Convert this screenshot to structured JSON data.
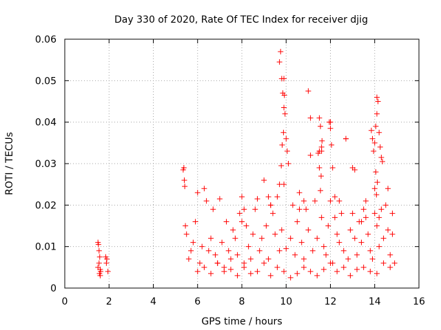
{
  "chart_data": {
    "type": "scatter",
    "title": "Day 330 of 2020, Rate Of TEC Index for receiver djig",
    "xlabel": "GPS time / hours",
    "ylabel": "ROTI / TECUs",
    "xlim": [
      0,
      16
    ],
    "ylim": [
      0,
      0.06
    ],
    "xticks": [
      "0",
      "2",
      "4",
      "6",
      "8",
      "10",
      "12",
      "14",
      "16"
    ],
    "yticks": [
      "0",
      "0.01",
      "0.02",
      "0.03",
      "0.04",
      "0.05",
      "0.06"
    ],
    "grid": true,
    "marker": "+",
    "color": "#ff0000",
    "series": [
      {
        "name": "ROTI",
        "x": [
          1.5,
          1.52,
          1.55,
          1.57,
          1.6,
          1.62,
          1.5,
          1.55,
          1.6,
          1.58,
          1.85,
          1.9,
          1.88,
          1.95,
          5.35,
          5.4,
          5.38,
          5.42,
          5.45,
          5.5,
          5.6,
          5.7,
          5.8,
          5.9,
          6.0,
          6.1,
          6.2,
          6.3,
          6.4,
          6.5,
          6.6,
          6.7,
          6.8,
          6.9,
          7.0,
          7.1,
          7.2,
          7.3,
          7.4,
          7.5,
          7.6,
          7.7,
          7.8,
          7.9,
          8.0,
          8.1,
          8.2,
          8.3,
          8.4,
          8.5,
          8.6,
          8.7,
          8.8,
          8.9,
          9.0,
          9.1,
          9.2,
          9.3,
          9.4,
          9.5,
          9.6,
          9.7,
          9.8,
          9.9,
          10.0,
          10.1,
          10.2,
          10.3,
          10.4,
          10.5,
          10.6,
          10.7,
          10.8,
          10.9,
          11.0,
          11.1,
          11.2,
          11.3,
          11.4,
          11.5,
          11.6,
          11.7,
          11.8,
          11.9,
          12.0,
          12.1,
          12.2,
          12.3,
          12.4,
          12.5,
          12.6,
          12.7,
          12.8,
          12.9,
          13.0,
          13.1,
          13.2,
          13.3,
          13.4,
          13.5,
          13.6,
          13.7,
          13.8,
          13.9,
          14.0,
          14.1,
          14.2,
          14.3,
          14.4,
          14.5,
          14.6,
          14.7,
          14.8,
          14.9,
          6.0,
          6.3,
          6.6,
          6.9,
          7.2,
          7.5,
          7.8,
          8.1,
          8.4,
          8.7,
          9.0,
          9.3,
          9.6,
          9.9,
          10.2,
          10.5,
          10.8,
          11.1,
          11.4,
          11.7,
          12.0,
          12.3,
          12.6,
          12.9,
          13.2,
          13.5,
          13.8,
          14.1,
          14.4,
          14.7,
          9.7,
          9.75,
          9.8,
          9.85,
          9.9,
          9.95,
          10.0,
          9.88,
          9.92,
          9.78,
          9.82,
          9.9,
          10.05,
          9.7,
          11.5,
          11.55,
          11.6,
          11.45,
          11.5,
          11.58,
          11.62,
          11.55,
          11.95,
          12.0,
          12.05,
          12.1,
          12.0,
          13.85,
          13.9,
          13.95,
          14.0,
          14.05,
          14.1,
          14.15,
          14.1,
          14.05,
          14.2,
          14.25,
          14.3,
          14.35,
          14.12,
          14.08,
          11.0,
          11.1,
          12.7,
          13.1,
          11.6,
          14.0,
          14.2,
          8.0,
          8.1,
          9.2,
          9.3,
          10.6,
          10.8,
          12.2,
          12.4,
          13.0,
          13.4,
          13.6,
          14.6,
          14.8
        ],
        "y": [
          0.011,
          0.0105,
          0.009,
          0.0035,
          0.003,
          0.004,
          0.005,
          0.006,
          0.0045,
          0.0075,
          0.0075,
          0.007,
          0.006,
          0.004,
          0.0285,
          0.026,
          0.029,
          0.0245,
          0.015,
          0.013,
          0.007,
          0.009,
          0.011,
          0.016,
          0.023,
          0.006,
          0.01,
          0.024,
          0.021,
          0.009,
          0.012,
          0.019,
          0.008,
          0.006,
          0.0215,
          0.011,
          0.005,
          0.016,
          0.009,
          0.007,
          0.014,
          0.012,
          0.008,
          0.018,
          0.022,
          0.006,
          0.015,
          0.01,
          0.007,
          0.013,
          0.019,
          0.0215,
          0.009,
          0.012,
          0.026,
          0.015,
          0.007,
          0.02,
          0.018,
          0.013,
          0.022,
          0.009,
          0.014,
          0.025,
          0.0095,
          0.03,
          0.012,
          0.02,
          0.008,
          0.016,
          0.023,
          0.011,
          0.007,
          0.019,
          0.014,
          0.032,
          0.009,
          0.021,
          0.012,
          0.033,
          0.017,
          0.01,
          0.008,
          0.015,
          0.04,
          0.006,
          0.022,
          0.013,
          0.011,
          0.018,
          0.009,
          0.036,
          0.007,
          0.014,
          0.029,
          0.012,
          0.008,
          0.016,
          0.011,
          0.019,
          0.021,
          0.013,
          0.009,
          0.007,
          0.024,
          0.015,
          0.01,
          0.019,
          0.012,
          0.02,
          0.014,
          0.008,
          0.018,
          0.006,
          0.004,
          0.005,
          0.0035,
          0.006,
          0.004,
          0.0045,
          0.003,
          0.005,
          0.0035,
          0.004,
          0.006,
          0.003,
          0.005,
          0.004,
          0.0025,
          0.0035,
          0.005,
          0.004,
          0.003,
          0.0045,
          0.006,
          0.004,
          0.005,
          0.003,
          0.0045,
          0.005,
          0.004,
          0.0035,
          0.006,
          0.005,
          0.0545,
          0.057,
          0.0505,
          0.047,
          0.0435,
          0.042,
          0.036,
          0.0375,
          0.0465,
          0.0295,
          0.0345,
          0.0505,
          0.033,
          0.025,
          0.041,
          0.039,
          0.034,
          0.0325,
          0.029,
          0.027,
          0.0355,
          0.0235,
          0.04,
          0.0385,
          0.0345,
          0.029,
          0.021,
          0.038,
          0.036,
          0.033,
          0.035,
          0.028,
          0.046,
          0.045,
          0.042,
          0.039,
          0.0375,
          0.034,
          0.0315,
          0.0305,
          0.0255,
          0.0225,
          0.0475,
          0.041,
          0.036,
          0.0285,
          0.033,
          0.018,
          0.017,
          0.016,
          0.019,
          0.022,
          0.02,
          0.019,
          0.021,
          0.017,
          0.021,
          0.018,
          0.016,
          0.017,
          0.024,
          0.013
        ]
      }
    ]
  }
}
